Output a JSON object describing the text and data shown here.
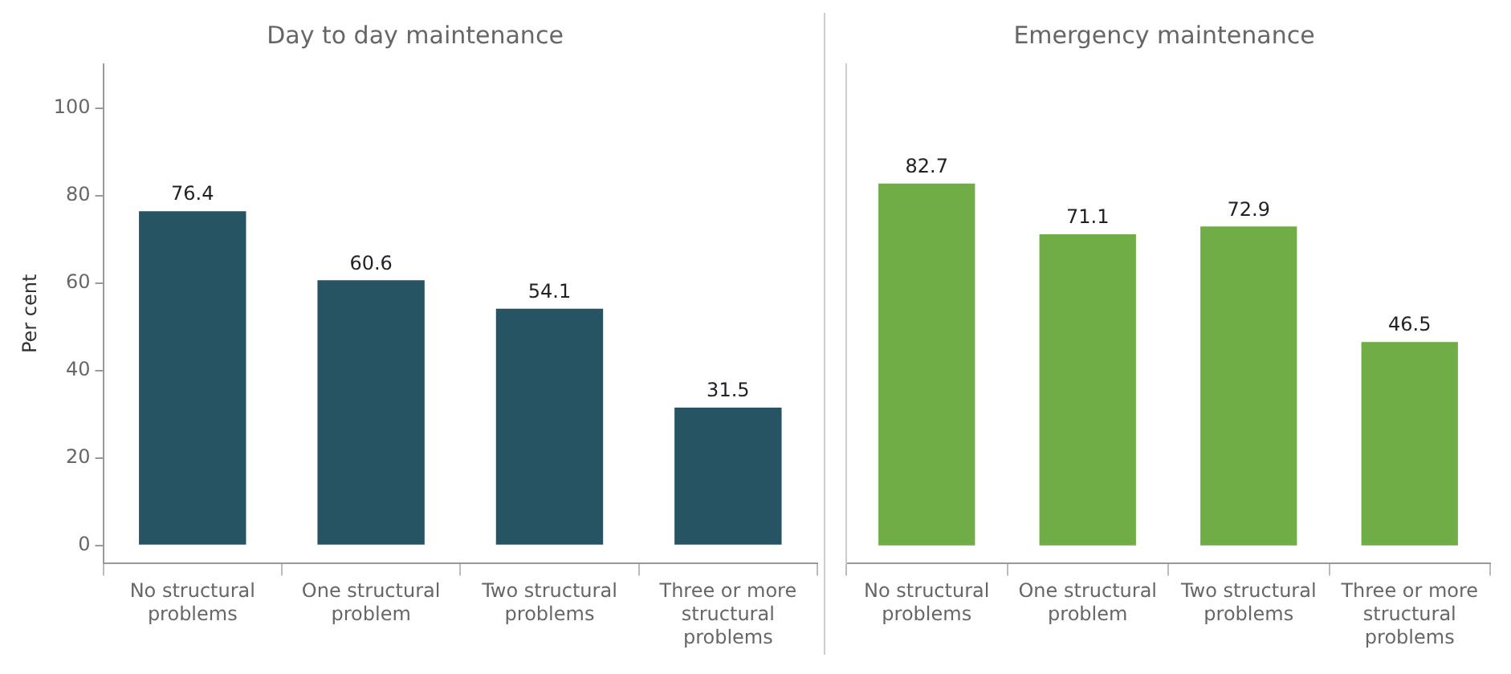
{
  "chart_data": [
    {
      "type": "bar",
      "title": "Day to day maintenance",
      "ylabel": "Per cent",
      "categories": [
        "No structural problems",
        "One structural problem",
        "Two structural problems",
        "Three or more structural problems"
      ],
      "values": [
        76.4,
        60.6,
        54.1,
        31.5
      ],
      "color": "#265463",
      "ylim": [
        -4,
        110
      ],
      "yticks": [
        0,
        20,
        40,
        60,
        80,
        100
      ],
      "data_labels": true,
      "grid": false,
      "legend": false
    },
    {
      "type": "bar",
      "title": "Emergency maintenance",
      "categories": [
        "No structural problems",
        "One structural problem",
        "Two structural problems",
        "Three or more structural problems"
      ],
      "values": [
        82.7,
        71.1,
        72.9,
        46.5
      ],
      "color": "#71ad47",
      "ylim": [
        -4,
        110
      ],
      "yticks": [
        0,
        20,
        40,
        60,
        80,
        100
      ],
      "data_labels": true,
      "grid": false,
      "legend": false,
      "tick_labels": "x"
    }
  ]
}
